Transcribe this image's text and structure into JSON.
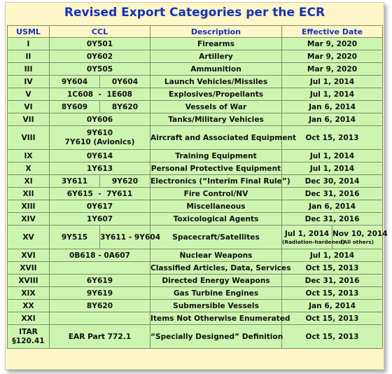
{
  "title": "Revised Export Categories per the ECR",
  "headers": {
    "usml": "USML",
    "ccl": "CCL",
    "description": "Description",
    "date": "Effective Date"
  },
  "rows": [
    {
      "usml": "I",
      "ccl": "0Y501",
      "description": "Firearms",
      "date": "Mar 9, 2020"
    },
    {
      "usml": "II",
      "ccl": "0Y602",
      "description": "Artillery",
      "date": "Mar 9, 2020"
    },
    {
      "usml": "III",
      "ccl": "0Y505",
      "description": "Ammunition",
      "date": "Mar 9, 2020"
    },
    {
      "usml": "IV",
      "ccl_a": "9Y604",
      "ccl_b": "0Y604",
      "description": "Launch Vehicles/Missiles",
      "date": "Jul 1, 2014"
    },
    {
      "usml": "V",
      "ccl": "1C608  -  1E608",
      "description": "Explosives/Propellants",
      "date": "Jul 1, 2014"
    },
    {
      "usml": "VI",
      "ccl_a": "8Y609",
      "ccl_b": "8Y620",
      "description": "Vessels of War",
      "date": "Jan 6, 2014"
    },
    {
      "usml": "VII",
      "ccl": "0Y606",
      "description": "Tanks/Military Vehicles",
      "date": "Jan 6, 2014"
    },
    {
      "usml": "VIII",
      "ccl": "9Y610",
      "ccl_line2": "7Y610 (Avionics)",
      "description": "Aircraft and Associated Equipment",
      "date": "Oct 15, 2013"
    },
    {
      "usml": "IX",
      "ccl": "0Y614",
      "description": "Training Equipment",
      "date": "Jul 1, 2014"
    },
    {
      "usml": "X",
      "ccl": "1Y613",
      "description": "Personal Protective Equipment",
      "date": "Jul 1, 2014"
    },
    {
      "usml": "XI",
      "ccl_a": "3Y611",
      "ccl_b": "9Y620",
      "description": "Electronics (“Interim Final Rule”)",
      "date": "Dec 30, 2014"
    },
    {
      "usml": "XII",
      "ccl": "6Y615  -  7Y611",
      "description": "Fire Control/NV",
      "date": "Dec 31, 2016"
    },
    {
      "usml": "XIII",
      "ccl": "0Y617",
      "description": "Miscellaneous",
      "date": "Jan 6, 2014"
    },
    {
      "usml": "XIV",
      "ccl": "1Y607",
      "description": "Toxicological Agents",
      "date": "Dec 31, 2016"
    },
    {
      "usml": "XV",
      "ccl_a": "9Y515",
      "ccl_b": "3Y611 - 9Y604",
      "description": "Spacecraft/Satellites",
      "date_a": "Jul 1, 2014",
      "date_a_note": "(Radiation-hardened)",
      "date_b": "Nov 10, 2014",
      "date_b_note": "(All others)"
    },
    {
      "usml": "XVI",
      "ccl": "0B618 - 0A607",
      "description": "Nuclear Weapons",
      "date": "Jul 1, 2014"
    },
    {
      "usml": "XVII",
      "ccl": "",
      "description": "Classified Articles, Data, Services",
      "date": "Oct 15, 2013"
    },
    {
      "usml": "XVIII",
      "ccl": "6Y619",
      "description": "Directed Energy Weapons",
      "date": "Dec 31, 2016"
    },
    {
      "usml": "XIX",
      "ccl": "9Y619",
      "description": "Gas Turbine Engines",
      "date": "Oct 15, 2013"
    },
    {
      "usml": "XX",
      "ccl": "8Y620",
      "description": "Submersible Vessels",
      "date": "Jan 6, 2014"
    },
    {
      "usml": "XXI",
      "ccl": "",
      "description": "Items Not Otherwise Enumerated",
      "date": "Oct 15, 2013"
    },
    {
      "usml": "ITAR",
      "usml_line2": "§120.41",
      "ccl": "EAR Part 772.1",
      "description": "“Specially Designed” Definition",
      "date": "Oct 15, 2013"
    }
  ],
  "colors": {
    "title": "#1632b8",
    "cell": "#ccf6b0",
    "card": "#fdf6c8"
  }
}
